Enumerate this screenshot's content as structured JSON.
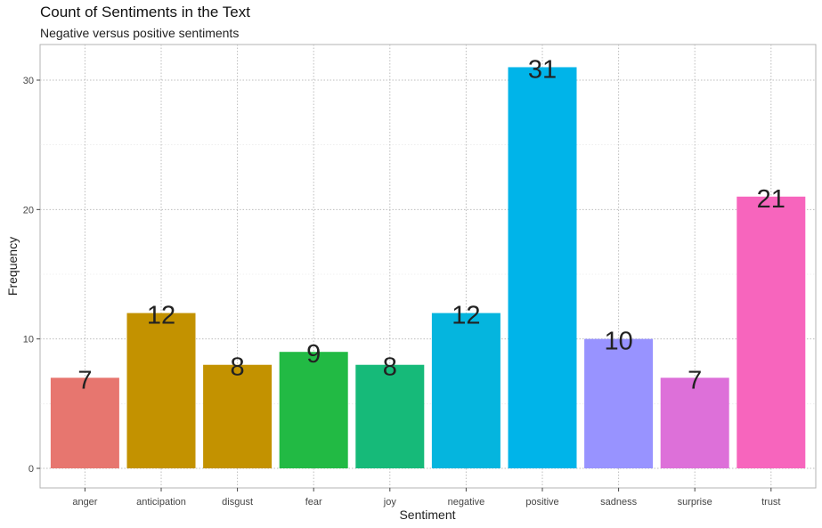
{
  "chart_data": {
    "type": "bar",
    "title": "Count of Sentiments in the Text",
    "subtitle": "Negative versus positive sentiments",
    "xlabel": "Sentiment",
    "ylabel": "Frequency",
    "categories": [
      "anger",
      "anticipation",
      "disgust",
      "fear",
      "joy",
      "negative",
      "positive",
      "sadness",
      "surprise",
      "trust"
    ],
    "values": [
      7,
      12,
      8,
      9,
      8,
      12,
      31,
      10,
      7,
      21
    ],
    "colors": [
      "#E7766F",
      "#C39200",
      "#C39200",
      "#22BA44",
      "#16BA79",
      "#05B5DE",
      "#00B4E9",
      "#9893FF",
      "#DD70D9",
      "#F765BD"
    ],
    "ylim": [
      0,
      32.5
    ],
    "yticks": [
      0,
      10,
      20,
      30
    ],
    "grid": true,
    "legend": "none"
  }
}
